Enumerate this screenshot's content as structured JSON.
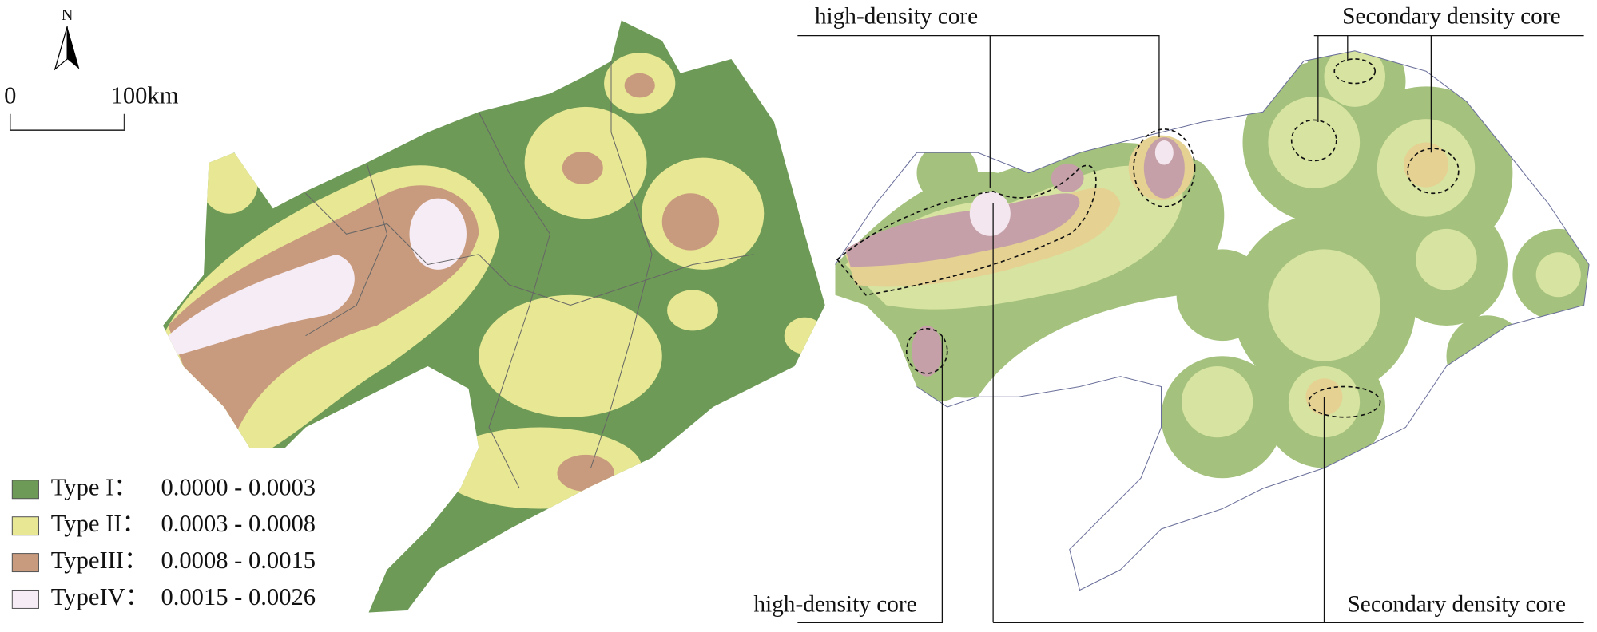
{
  "north": "N",
  "scale": {
    "start": "0",
    "end": "100km"
  },
  "legend": [
    {
      "label": "Type I：",
      "range": "0.0000 - 0.0003",
      "color": "#6e9a57"
    },
    {
      "label": "Type II：",
      "range": "0.0003 - 0.0008",
      "color": "#e8e894"
    },
    {
      "label": "TypeIII：",
      "range": "0.0008 - 0.0015",
      "color": "#c99b7e"
    },
    {
      "label": "TypeIV：",
      "range": "0.0015 - 0.0026",
      "color": "#f5ecf5"
    }
  ],
  "annotations": {
    "top_left": "high-density core",
    "top_right": "Secondary density core",
    "bottom_left": "high-density core",
    "bottom_right": "Secondary density core"
  }
}
